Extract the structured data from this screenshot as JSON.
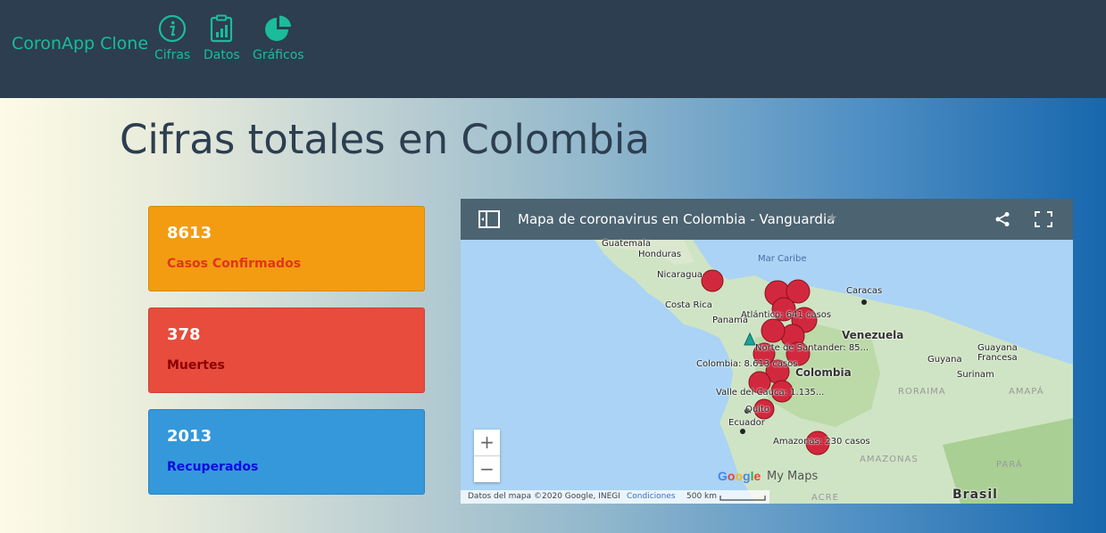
{
  "nav": {
    "brand": "CoronApp Clone",
    "items": [
      {
        "label": "Cifras",
        "icon": "info-icon"
      },
      {
        "label": "Datos",
        "icon": "clipboard-chart-icon"
      },
      {
        "label": "Gráficos",
        "icon": "pie-chart-icon"
      }
    ]
  },
  "page": {
    "title": "Cifras totales en Colombia"
  },
  "cards": [
    {
      "value": "8613",
      "label": "Casos Confirmados",
      "color": "#f39c12"
    },
    {
      "value": "378",
      "label": "Muertes",
      "color": "#e74c3c"
    },
    {
      "value": "2013",
      "label": "Recuperados",
      "color": "#3498db"
    }
  ],
  "map": {
    "title": "Mapa de coronavirus en Colombia - Vanguardia",
    "star": "★",
    "labels": {
      "guatemala": "Guatemala",
      "honduras": "Honduras",
      "nicaragua": "Nicaragua",
      "costa_rica": "Costa Rica",
      "panama": "Panamá",
      "mar_caribe": "Mar Caribe",
      "caracas": "Caracas",
      "venezuela": "Venezuela",
      "guyana": "Guyana",
      "guayana_francesa": "Guayana\nFrancesa",
      "surinam": "Surinam",
      "colombia_city": "Colombia",
      "roraima": "RORAIMA",
      "amapa": "AMAPÁ",
      "quito": "Quito",
      "ecuador": "Ecuador",
      "amazonas_region": "AMAZONAS",
      "para": "PARÁ",
      "acre": "ACRE",
      "brasil": "Brasil"
    },
    "markers": {
      "atlantico": "Atlántico: 641 casos",
      "norte_santander": "Norte de Santander: 85...",
      "colombia": "Colombia: 8.613 casos",
      "valle_cauca": "Valle del Cauca: 1.135...",
      "amazonas": "Amazonas: 230 casos"
    },
    "zoom_in": "+",
    "zoom_out": "−",
    "google": "Google",
    "my_maps": "My Maps",
    "attribution": "Datos del mapa ©2020 Google, INEGI",
    "conditions": "Condiciones",
    "scale": "500 km"
  }
}
